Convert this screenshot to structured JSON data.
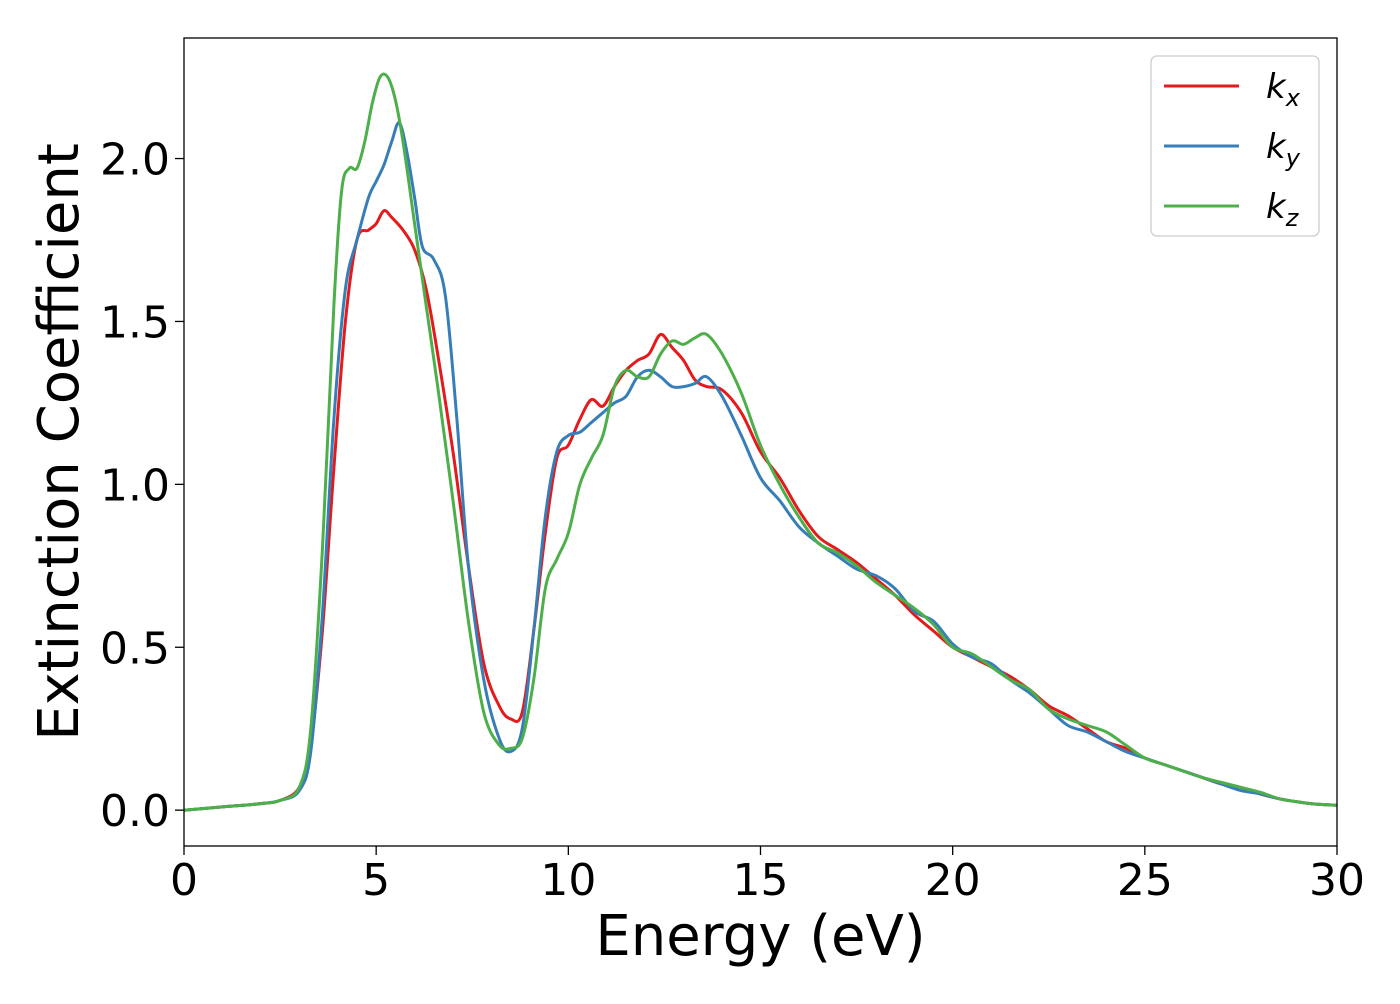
{
  "chart_data": {
    "type": "line",
    "title": "",
    "xlabel": "Energy (eV)",
    "ylabel": "Extinction Coefficient",
    "xlim": [
      0,
      30
    ],
    "ylim": [
      -0.11,
      2.37
    ],
    "xticks": [
      0,
      5,
      10,
      15,
      20,
      25,
      30
    ],
    "xtick_labels": [
      "0",
      "5",
      "10",
      "15",
      "20",
      "25",
      "30"
    ],
    "yticks": [
      0.0,
      0.5,
      1.0,
      1.5,
      2.0
    ],
    "ytick_labels": [
      "0.0",
      "0.5",
      "1.0",
      "1.5",
      "2.0"
    ],
    "grid": false,
    "legend_position": "top-right",
    "series": [
      {
        "name": "k_x",
        "legend_base": "k",
        "legend_sub": "x",
        "color": "#e41a1c",
        "x": [
          0,
          1,
          2,
          2.5,
          3,
          3.3,
          3.6,
          3.9,
          4.2,
          4.5,
          4.8,
          5.0,
          5.2,
          5.4,
          5.7,
          6.0,
          6.3,
          6.6,
          7.0,
          7.4,
          7.8,
          8.2,
          8.5,
          8.8,
          9.1,
          9.4,
          9.7,
          10.0,
          10.3,
          10.6,
          10.9,
          11.2,
          11.5,
          11.8,
          12.1,
          12.4,
          12.7,
          13.0,
          13.3,
          13.6,
          14.0,
          14.5,
          15.0,
          15.5,
          16.0,
          16.5,
          17.0,
          17.5,
          18.0,
          18.5,
          19.0,
          19.5,
          20.0,
          20.5,
          21.0,
          21.5,
          22.0,
          22.5,
          23.0,
          23.5,
          24.0,
          24.5,
          25.0,
          25.5,
          26.0,
          26.5,
          27.0,
          27.5,
          28.0,
          28.5,
          29.0,
          29.5,
          30.0
        ],
        "y": [
          0.0,
          0.01,
          0.02,
          0.03,
          0.07,
          0.2,
          0.55,
          1.05,
          1.5,
          1.75,
          1.78,
          1.8,
          1.84,
          1.82,
          1.78,
          1.72,
          1.6,
          1.4,
          1.1,
          0.75,
          0.45,
          0.32,
          0.28,
          0.3,
          0.55,
          0.85,
          1.08,
          1.12,
          1.2,
          1.26,
          1.24,
          1.3,
          1.35,
          1.38,
          1.4,
          1.46,
          1.42,
          1.38,
          1.32,
          1.3,
          1.29,
          1.22,
          1.1,
          1.02,
          0.92,
          0.84,
          0.8,
          0.76,
          0.71,
          0.66,
          0.6,
          0.55,
          0.5,
          0.47,
          0.44,
          0.41,
          0.37,
          0.32,
          0.29,
          0.25,
          0.21,
          0.19,
          0.16,
          0.14,
          0.12,
          0.1,
          0.08,
          0.07,
          0.05,
          0.035,
          0.025,
          0.018,
          0.015
        ]
      },
      {
        "name": "k_y",
        "legend_base": "k",
        "legend_sub": "y",
        "color": "#377eb8",
        "x": [
          0,
          1,
          2,
          2.5,
          3,
          3.3,
          3.6,
          3.9,
          4.2,
          4.5,
          4.8,
          5.0,
          5.2,
          5.4,
          5.6,
          5.8,
          6.0,
          6.2,
          6.5,
          6.8,
          7.1,
          7.4,
          7.8,
          8.2,
          8.5,
          8.8,
          9.1,
          9.4,
          9.7,
          10.0,
          10.3,
          10.6,
          10.9,
          11.2,
          11.5,
          11.8,
          12.1,
          12.4,
          12.7,
          13.0,
          13.3,
          13.6,
          14.0,
          14.5,
          15.0,
          15.5,
          16.0,
          16.5,
          17.0,
          17.5,
          18.0,
          18.5,
          19.0,
          19.5,
          20.0,
          20.5,
          21.0,
          21.5,
          22.0,
          22.5,
          23.0,
          23.5,
          24.0,
          24.5,
          25.0,
          25.5,
          26.0,
          26.5,
          27.0,
          27.5,
          28.0,
          28.5,
          29.0,
          29.5,
          30.0
        ],
        "y": [
          0.0,
          0.01,
          0.02,
          0.03,
          0.06,
          0.18,
          0.6,
          1.2,
          1.6,
          1.75,
          1.88,
          1.93,
          1.98,
          2.05,
          2.11,
          2.02,
          1.88,
          1.73,
          1.69,
          1.58,
          1.2,
          0.75,
          0.4,
          0.22,
          0.18,
          0.25,
          0.55,
          0.9,
          1.1,
          1.15,
          1.16,
          1.19,
          1.22,
          1.25,
          1.27,
          1.33,
          1.35,
          1.33,
          1.3,
          1.3,
          1.31,
          1.33,
          1.27,
          1.15,
          1.02,
          0.95,
          0.87,
          0.82,
          0.78,
          0.74,
          0.72,
          0.68,
          0.61,
          0.58,
          0.51,
          0.47,
          0.45,
          0.4,
          0.36,
          0.31,
          0.26,
          0.24,
          0.21,
          0.18,
          0.16,
          0.14,
          0.12,
          0.1,
          0.08,
          0.06,
          0.05,
          0.035,
          0.025,
          0.018,
          0.015
        ]
      },
      {
        "name": "k_z",
        "legend_base": "k",
        "legend_sub": "z",
        "color": "#4daf4a",
        "x": [
          0,
          1,
          2,
          2.5,
          3,
          3.3,
          3.6,
          3.9,
          4.1,
          4.3,
          4.5,
          4.7,
          4.9,
          5.1,
          5.3,
          5.5,
          5.7,
          6.0,
          6.3,
          6.6,
          7.0,
          7.4,
          7.8,
          8.2,
          8.5,
          8.8,
          9.1,
          9.4,
          9.7,
          10.0,
          10.3,
          10.6,
          10.9,
          11.2,
          11.5,
          11.8,
          12.1,
          12.4,
          12.7,
          13.0,
          13.3,
          13.6,
          14.0,
          14.5,
          15.0,
          15.5,
          16.0,
          16.5,
          17.0,
          17.5,
          18.0,
          18.5,
          19.0,
          19.5,
          20.0,
          20.5,
          21.0,
          21.5,
          22.0,
          22.5,
          23.0,
          23.5,
          24.0,
          24.5,
          25.0,
          25.5,
          26.0,
          26.5,
          27.0,
          27.5,
          28.0,
          28.5,
          29.0,
          29.5,
          30.0
        ],
        "y": [
          0.0,
          0.01,
          0.02,
          0.03,
          0.07,
          0.25,
          0.8,
          1.55,
          1.9,
          1.97,
          1.97,
          2.05,
          2.17,
          2.25,
          2.25,
          2.18,
          2.05,
          1.8,
          1.55,
          1.3,
          0.95,
          0.58,
          0.3,
          0.2,
          0.19,
          0.22,
          0.4,
          0.68,
          0.77,
          0.85,
          1.0,
          1.08,
          1.15,
          1.3,
          1.35,
          1.33,
          1.33,
          1.4,
          1.44,
          1.43,
          1.45,
          1.46,
          1.4,
          1.28,
          1.12,
          1.0,
          0.9,
          0.82,
          0.79,
          0.75,
          0.7,
          0.66,
          0.62,
          0.57,
          0.5,
          0.48,
          0.44,
          0.4,
          0.37,
          0.31,
          0.28,
          0.26,
          0.24,
          0.2,
          0.16,
          0.14,
          0.12,
          0.1,
          0.085,
          0.07,
          0.055,
          0.035,
          0.025,
          0.018,
          0.015
        ]
      }
    ]
  }
}
